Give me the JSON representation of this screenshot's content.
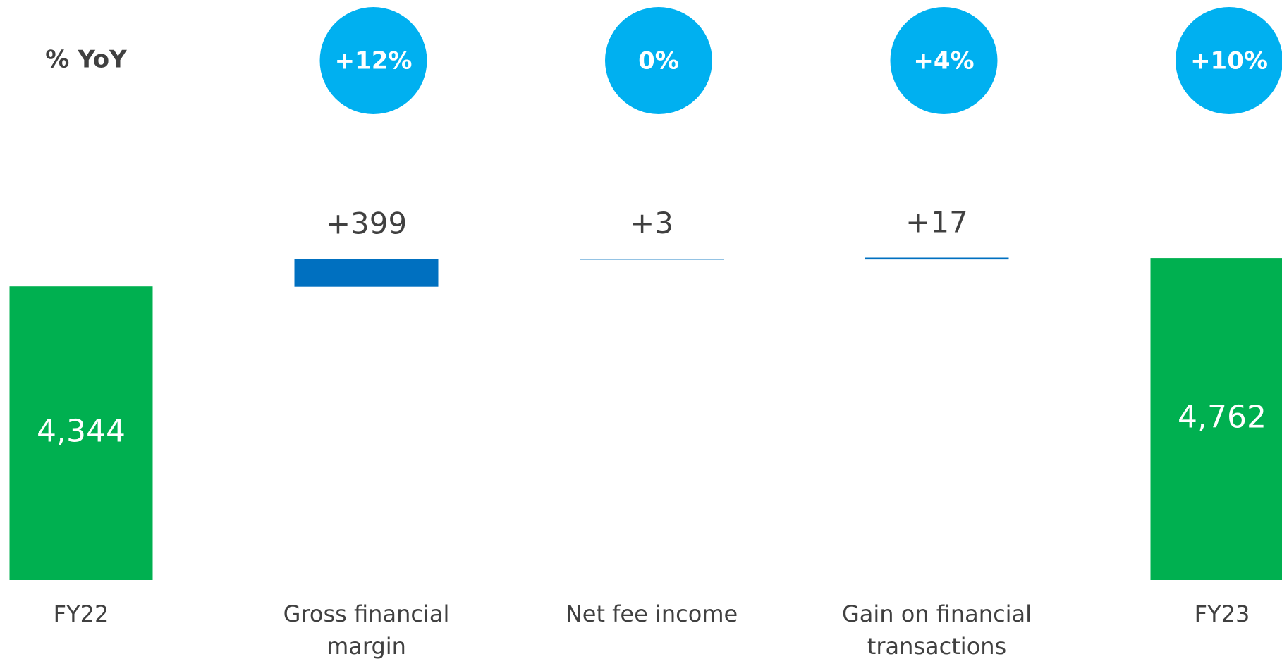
{
  "chart_data": {
    "type": "waterfall",
    "categories": [
      "FY22",
      "Gross financial margin",
      "Net fee income",
      "Gain on financial transactions",
      "FY23"
    ],
    "values": [
      4344,
      399,
      3,
      17,
      4762
    ],
    "value_labels": [
      "4,344",
      "+399",
      "+3",
      "+17",
      "4,762"
    ],
    "total": [
      true,
      false,
      false,
      false,
      true
    ],
    "total_color": "#00b050",
    "step_color": "#0070c0",
    "yoy": {
      "label": "% YoY",
      "values": [
        12,
        0,
        4,
        10
      ],
      "value_labels": [
        "+12%",
        "0%",
        "+4%",
        "+10%"
      ],
      "color": "#00b0f0"
    }
  }
}
